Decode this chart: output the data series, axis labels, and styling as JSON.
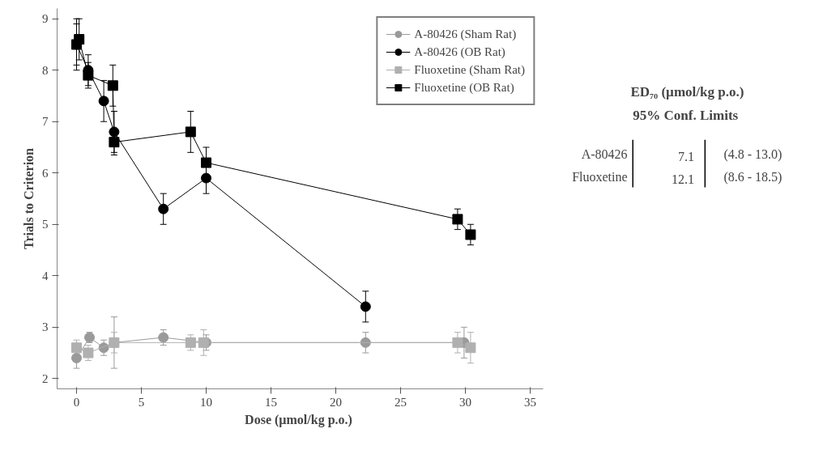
{
  "chart_data": [
    {
      "type": "line",
      "xlabel": "Dose (µmol/kg  p.o.)",
      "ylabel": "Trials to Criterion",
      "xlim": [
        -1.5,
        36
      ],
      "ylim": [
        1.8,
        9.2
      ],
      "xticks": [
        0,
        5,
        10,
        15,
        20,
        25,
        30,
        35
      ],
      "yticks": [
        2,
        3,
        4,
        5,
        6,
        7,
        8,
        9
      ],
      "grid": false,
      "legend": "top right",
      "series": [
        {
          "name": "A-80426 (Sham Rat)",
          "color": "#9a9a9a",
          "marker": "circle",
          "x": [
            0,
            1,
            2.1,
            2.9,
            6.7,
            10,
            22.3,
            29.9
          ],
          "values": [
            2.4,
            2.8,
            2.6,
            2.7,
            2.8,
            2.7,
            2.7,
            2.7
          ],
          "errors": [
            0.2,
            0.1,
            0.15,
            0.5,
            0.15,
            0.15,
            0.2,
            0.3
          ]
        },
        {
          "name": "A-80426 (OB Rat)",
          "color": "#000000",
          "marker": "circle",
          "x": [
            0,
            0.9,
            2.1,
            2.9,
            6.7,
            10,
            22.3
          ],
          "values": [
            8.5,
            8.0,
            7.4,
            6.8,
            5.3,
            5.9,
            3.4
          ],
          "errors": [
            0.4,
            0.3,
            0.4,
            0.4,
            0.3,
            0.3,
            0.3
          ]
        },
        {
          "name": "Fluoxetine (Sham Rat)",
          "color": "#b0b0b0",
          "marker": "square",
          "x": [
            0,
            0.9,
            2.9,
            8.8,
            9.8,
            29.4,
            30.4
          ],
          "values": [
            2.6,
            2.5,
            2.7,
            2.7,
            2.7,
            2.7,
            2.6
          ],
          "errors": [
            0.15,
            0.15,
            0.2,
            0.15,
            0.25,
            0.2,
            0.3
          ]
        },
        {
          "name": "Fluoxetine (OB Rat)",
          "color": "#000000",
          "marker": "square",
          "x": [
            0,
            0.2,
            0.9,
            2.8,
            2.9,
            8.8,
            10,
            29.4,
            30.4
          ],
          "values": [
            8.5,
            8.6,
            7.9,
            7.7,
            6.6,
            6.8,
            6.2,
            5.1,
            4.8
          ],
          "errors": [
            0.5,
            0.4,
            0.25,
            0.4,
            0.25,
            0.4,
            0.3,
            0.2,
            0.2
          ]
        }
      ]
    },
    {
      "type": "other",
      "annotations": [
        "ED₇₀ (µmol/kg  p.o.)",
        "95%  Conf.  Limits",
        "A-80426",
        "7.1",
        "(4.8 - 13.0)",
        "Fluoxetine",
        "12.1",
        "(8.6 - 18.5)"
      ]
    }
  ]
}
